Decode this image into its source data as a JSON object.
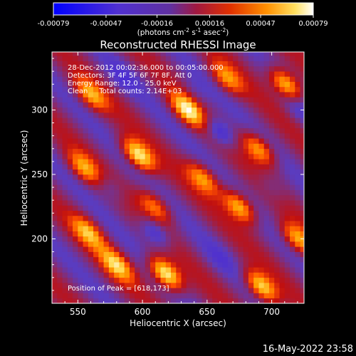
{
  "chart_data": {
    "type": "heatmap",
    "title": "Reconstructed RHESSI Image",
    "xlabel": "Heliocentric X (arcsec)",
    "ylabel": "Heliocentric Y (arcsec)",
    "xlim": [
      530,
      725
    ],
    "ylim": [
      150,
      345
    ],
    "xticks": [
      550,
      600,
      650,
      700
    ],
    "yticks": [
      200,
      250,
      300
    ],
    "colorbar": {
      "ticks": [
        "-0.00079",
        "-0.00047",
        "-0.00016",
        "0.00016",
        "0.00047",
        "0.00079"
      ],
      "range": [
        -0.00079,
        0.00079
      ],
      "colors": [
        "#0000ff",
        "#4a2bd6",
        "#5a3cc0",
        "#8a2a6a",
        "#c01010",
        "#ff5000",
        "#ffa000",
        "#ffe060",
        "#ffffff"
      ],
      "unit_label": {
        "base": "(photons cm",
        "exp1": "-2",
        "mid1": " s",
        "exp2": "-1",
        "mid2": " asec",
        "exp3": "-2",
        "end": ")"
      }
    },
    "annotations": {
      "time_range": "28-Dec-2012 00:02:36.000 to 00:05:00.000",
      "detectors": "Detectors: 3F 4F 5F 6F 7F 8F, Att 0",
      "energy_range": "Energy Range: 12.0 - 25.0 keV",
      "clean_counts": "Clean     Total counts: 2.14E+03",
      "peak": "Position of Peak = [618,173]"
    },
    "peak_position": [
      618,
      173
    ],
    "hotspots": [
      {
        "x": 597,
        "y": 265,
        "value": 0.0007
      },
      {
        "x": 618,
        "y": 173,
        "value": 0.00079
      },
      {
        "x": 635,
        "y": 300,
        "value": 0.00065
      },
      {
        "x": 711,
        "y": 320,
        "value": 0.0006
      },
      {
        "x": 692,
        "y": 163,
        "value": 0.00062
      },
      {
        "x": 675,
        "y": 225,
        "value": 0.00055
      },
      {
        "x": 560,
        "y": 312,
        "value": 0.0004
      },
      {
        "x": 558,
        "y": 205,
        "value": 0.00042
      },
      {
        "x": 647,
        "y": 247,
        "value": 0.0004
      },
      {
        "x": 690,
        "y": 270,
        "value": 0.00045
      },
      {
        "x": 580,
        "y": 180,
        "value": 0.0005
      },
      {
        "x": 720,
        "y": 200,
        "value": 0.00045
      },
      {
        "x": 555,
        "y": 255,
        "value": 0.00038
      },
      {
        "x": 610,
        "y": 225,
        "value": 0.0003
      },
      {
        "x": 665,
        "y": 325,
        "value": 0.00035
      }
    ],
    "negative_spots": [
      {
        "x": 660,
        "y": 283,
        "value": -0.0007
      },
      {
        "x": 610,
        "y": 205,
        "value": -0.00065
      },
      {
        "x": 575,
        "y": 240,
        "value": -0.00045
      },
      {
        "x": 700,
        "y": 240,
        "value": -0.0004
      },
      {
        "x": 640,
        "y": 315,
        "value": -0.00035
      },
      {
        "x": 585,
        "y": 325,
        "value": -0.0004
      },
      {
        "x": 720,
        "y": 300,
        "value": -0.0004
      },
      {
        "x": 660,
        "y": 185,
        "value": -0.00035
      }
    ]
  },
  "footer": {
    "date": "16-May-2022 23:58"
  }
}
